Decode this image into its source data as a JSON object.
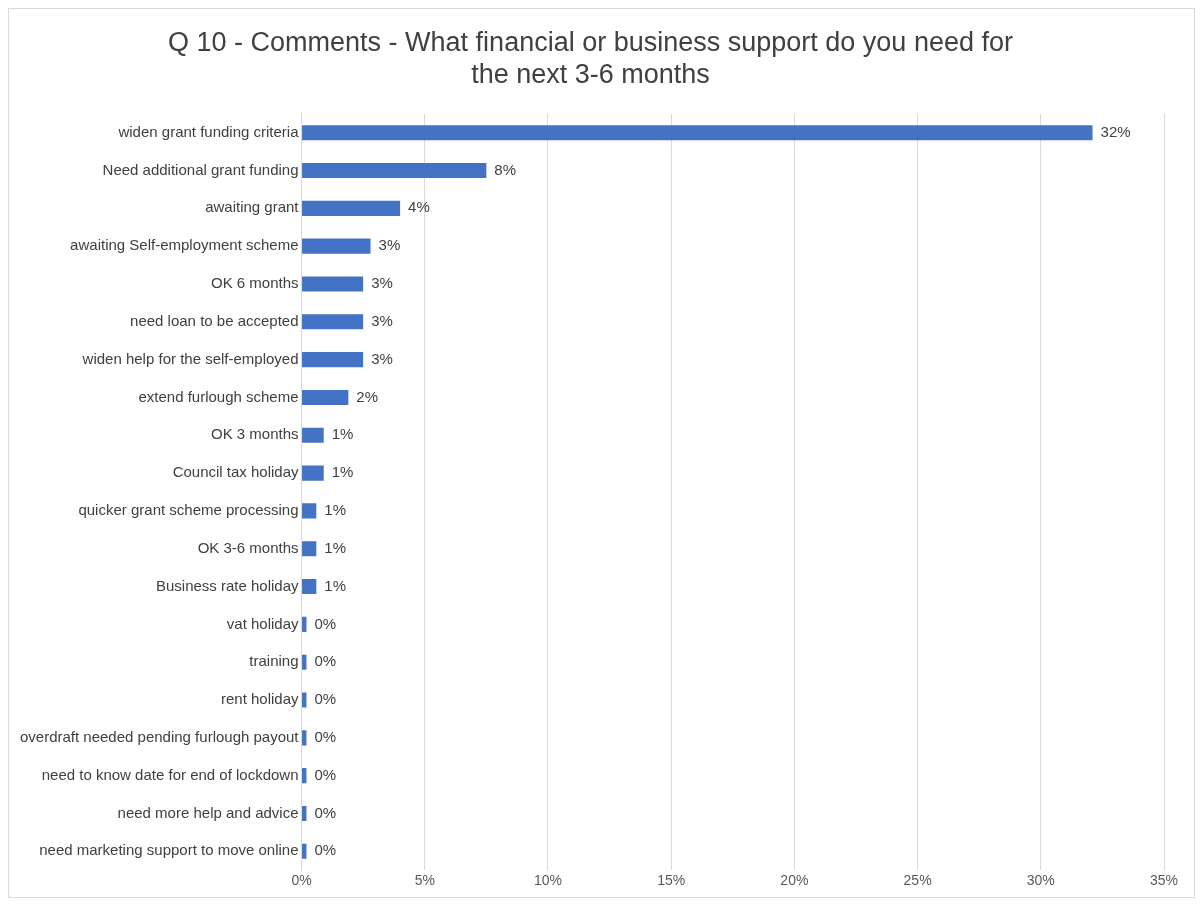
{
  "chart_data": {
    "type": "bar",
    "orientation": "horizontal",
    "title": "Q 10 - Comments - What financial or business support do you need for the next 3-6 months",
    "categories": [
      "widen grant funding criteria",
      "Need additional grant funding",
      "awaiting grant",
      "awaiting Self-employment scheme",
      "OK 6 months",
      "need loan to be accepted",
      "widen help for the self-employed",
      "extend furlough scheme",
      "OK 3 months",
      "Council tax holiday",
      "quicker grant scheme processing",
      "OK 3-6 months",
      "Business rate holiday",
      "vat holiday",
      "training",
      "rent holiday",
      "overdraft needed pending furlough payout",
      "need to know date for end of lockdown",
      "need more help and advice",
      "need marketing support to move online"
    ],
    "values": [
      32.1,
      7.5,
      4.0,
      2.8,
      2.5,
      2.5,
      2.5,
      1.9,
      0.9,
      0.9,
      0.6,
      0.6,
      0.6,
      0.2,
      0.2,
      0.2,
      0.2,
      0.2,
      0.2,
      0.2
    ],
    "value_labels": [
      "32%",
      "8%",
      "4%",
      "3%",
      "3%",
      "3%",
      "3%",
      "2%",
      "1%",
      "1%",
      "1%",
      "1%",
      "1%",
      "0%",
      "0%",
      "0%",
      "0%",
      "0%",
      "0%",
      "0%"
    ],
    "color": "#4472c4",
    "xlim": [
      0,
      35
    ],
    "xticks": [
      {
        "value": 0,
        "label": "0%"
      },
      {
        "value": 5,
        "label": "5%"
      },
      {
        "value": 10,
        "label": "10%"
      },
      {
        "value": 15,
        "label": "15%"
      },
      {
        "value": 20,
        "label": "20%"
      },
      {
        "value": 25,
        "label": "25%"
      },
      {
        "value": 30,
        "label": "30%"
      },
      {
        "value": 35,
        "label": "35%"
      }
    ],
    "grid": "x",
    "legend": false
  }
}
